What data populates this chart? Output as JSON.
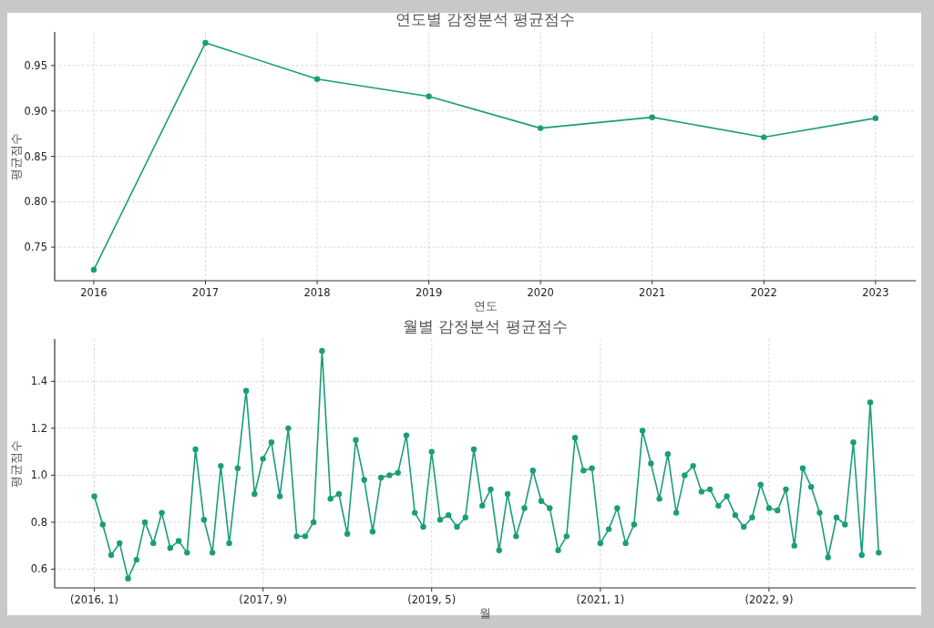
{
  "chart_data": [
    {
      "type": "line",
      "title": "연도별 감정분석 평균점수",
      "xlabel": "연도",
      "ylabel": "평균점수",
      "x": [
        2016,
        2017,
        2018,
        2019,
        2020,
        2021,
        2022,
        2023
      ],
      "series": [
        {
          "color": "#1a9e77",
          "values": [
            0.725,
            0.975,
            0.935,
            0.916,
            0.881,
            0.893,
            0.871,
            0.892
          ]
        }
      ],
      "xlim": [
        2015.65,
        2023.36
      ],
      "xticks": [
        2016,
        2017,
        2018,
        2019,
        2020,
        2021,
        2022,
        2023
      ],
      "ylim": [
        0.713,
        0.987
      ],
      "yticks": [
        {
          "value": 0.75,
          "label": "0.75"
        },
        {
          "value": 0.8,
          "label": "0.80"
        },
        {
          "value": 0.85,
          "label": "0.85"
        },
        {
          "value": 0.9,
          "label": "0.90"
        },
        {
          "value": 0.95,
          "label": "0.95"
        }
      ],
      "grid": true,
      "marker": "circle",
      "line_style": "solid"
    },
    {
      "type": "line",
      "title": "월별 감정분석 평균점수",
      "xlabel": "월",
      "ylabel": "평균점수",
      "categories": [
        "(2016, 1)",
        null,
        null,
        null,
        null,
        null,
        null,
        null,
        null,
        null,
        null,
        null,
        null,
        null,
        null,
        null,
        null,
        null,
        null,
        null,
        "(2017, 9)",
        null,
        null,
        null,
        null,
        null,
        null,
        null,
        null,
        null,
        null,
        null,
        null,
        null,
        null,
        null,
        null,
        null,
        null,
        null,
        "(2019, 5)",
        null,
        null,
        null,
        null,
        null,
        null,
        null,
        null,
        null,
        null,
        null,
        null,
        null,
        null,
        null,
        null,
        null,
        null,
        null,
        "(2021, 1)",
        null,
        null,
        null,
        null,
        null,
        null,
        null,
        null,
        null,
        null,
        null,
        null,
        null,
        null,
        null,
        null,
        null,
        null,
        null,
        "(2022, 9)",
        null,
        null,
        null,
        null,
        null,
        null,
        null,
        null,
        null,
        null,
        null,
        null,
        null
      ],
      "series": [
        {
          "color": "#1a9e77",
          "values": [
            0.91,
            0.79,
            0.66,
            0.71,
            0.56,
            0.64,
            0.8,
            0.71,
            0.84,
            0.69,
            0.72,
            0.67,
            1.11,
            0.81,
            0.67,
            1.04,
            0.71,
            1.03,
            1.36,
            0.92,
            1.07,
            1.14,
            0.91,
            1.2,
            0.74,
            0.74,
            0.8,
            1.53,
            0.9,
            0.92,
            0.75,
            1.15,
            0.98,
            0.76,
            0.99,
            1.0,
            1.01,
            1.17,
            0.84,
            0.78,
            1.1,
            0.81,
            0.83,
            0.78,
            0.82,
            1.11,
            0.87,
            0.94,
            0.68,
            0.92,
            0.74,
            0.86,
            1.02,
            0.89,
            0.86,
            0.68,
            0.74,
            1.16,
            1.02,
            1.03,
            0.71,
            0.77,
            0.86,
            0.71,
            0.79,
            1.19,
            1.05,
            0.9,
            1.09,
            0.84,
            1.0,
            1.04,
            0.93,
            0.94,
            0.87,
            0.91,
            0.83,
            0.78,
            0.82,
            0.96,
            0.86,
            0.85,
            0.94,
            0.7,
            1.03,
            0.95,
            0.84,
            0.65,
            0.82,
            0.79,
            1.14,
            0.66,
            1.31,
            0.67
          ]
        }
      ],
      "ylim": [
        0.52,
        1.58
      ],
      "yticks": [
        {
          "value": 0.6,
          "label": "0.6"
        },
        {
          "value": 0.8,
          "label": "0.8"
        },
        {
          "value": 1.0,
          "label": "1.0"
        },
        {
          "value": 1.2,
          "label": "1.2"
        },
        {
          "value": 1.4,
          "label": "1.4"
        }
      ],
      "grid": true,
      "marker": "circle",
      "line_style": "solid"
    }
  ]
}
